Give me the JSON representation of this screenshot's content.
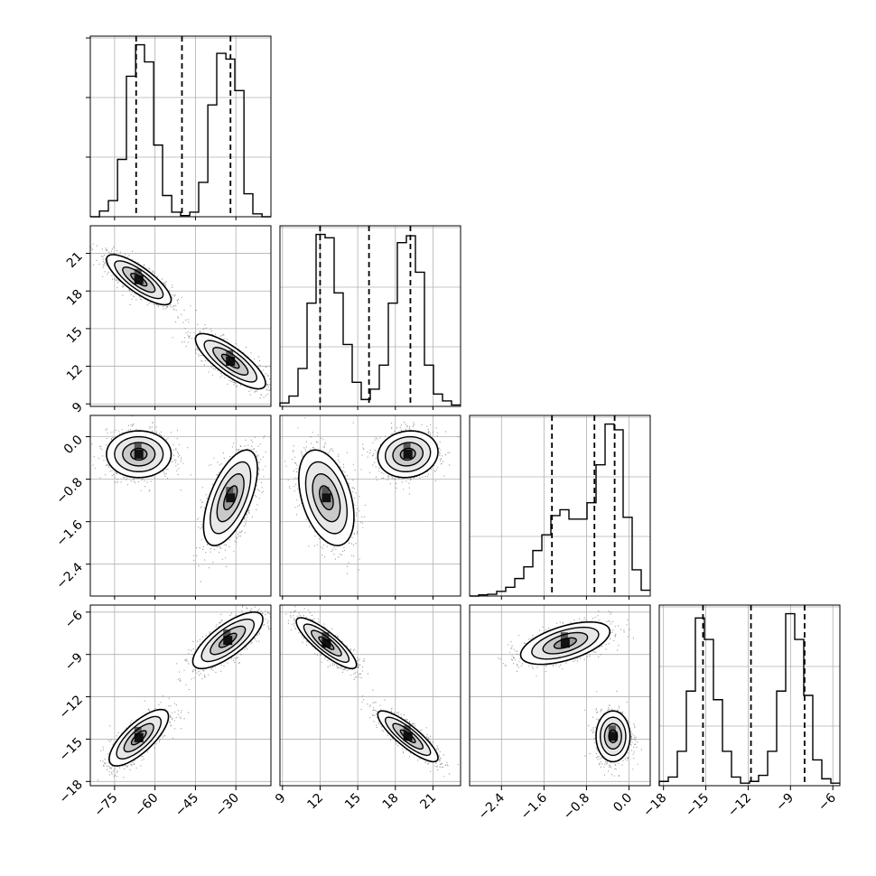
{
  "chart_data": {
    "type": "corner",
    "parameters": [
      {
        "name": "",
        "range": [
          -84,
          -17
        ],
        "ticks": [
          -75,
          -60,
          -45,
          -30
        ]
      },
      {
        "name": "",
        "range": [
          8.8,
          23.2
        ],
        "ticks": [
          9,
          12,
          15,
          18,
          21
        ]
      },
      {
        "name": "",
        "range": [
          -3.0,
          0.4
        ],
        "ticks": [
          -2.4,
          -1.6,
          -0.8,
          0.0
        ]
      },
      {
        "name": "",
        "range": [
          -18.3,
          -5.5
        ],
        "ticks": [
          -18,
          -15,
          -12,
          -9,
          -6
        ]
      }
    ],
    "quantile_lines": [
      [
        -67,
        -50,
        -32
      ],
      [
        12.0,
        15.9,
        19.2
      ],
      [
        -1.45,
        -0.65,
        -0.27
      ],
      [
        -15.2,
        -11.8,
        -8.0
      ]
    ],
    "histograms": [
      {
        "bins": [
          -84,
          -80.6,
          -77.3,
          -73.9,
          -70.6,
          -67.2,
          -63.9,
          -60.5,
          -57.2,
          -53.8,
          -50.5,
          -47.1,
          -43.8,
          -40.4,
          -37.1,
          -33.7,
          -30.4,
          -27,
          -23.7,
          -20.3,
          -17
        ],
        "counts": [
          0,
          10,
          28,
          100,
          245,
          300,
          270,
          125,
          37,
          8,
          2,
          8,
          60,
          195,
          285,
          275,
          220,
          40,
          5,
          0
        ]
      },
      {
        "bins": [
          8.8,
          9.52,
          10.24,
          10.96,
          11.68,
          12.4,
          13.12,
          13.84,
          14.56,
          15.28,
          16.0,
          16.72,
          17.44,
          18.16,
          18.88,
          19.6,
          20.32,
          21.04,
          21.76,
          22.48,
          23.2
        ],
        "counts": [
          5,
          15,
          55,
          150,
          250,
          245,
          165,
          90,
          35,
          10,
          25,
          60,
          150,
          238,
          248,
          195,
          60,
          18,
          8,
          2
        ]
      },
      {
        "bins": [
          -3.0,
          -2.83,
          -2.66,
          -2.49,
          -2.32,
          -2.15,
          -1.98,
          -1.81,
          -1.64,
          -1.47,
          -1.3,
          -1.13,
          -0.96,
          -0.79,
          -0.62,
          -0.45,
          -0.28,
          -0.11,
          0.06,
          0.23,
          0.4
        ],
        "counts": [
          0,
          2,
          3,
          8,
          15,
          30,
          50,
          78,
          105,
          138,
          148,
          132,
          132,
          160,
          225,
          295,
          285,
          135,
          45,
          10
        ]
      },
      {
        "bins": [
          -18.3,
          -17.66,
          -17.02,
          -16.38,
          -15.74,
          -15.1,
          -14.46,
          -13.82,
          -13.18,
          -12.54,
          -11.9,
          -11.26,
          -10.62,
          -9.98,
          -9.34,
          -8.7,
          -8.06,
          -7.42,
          -6.78,
          -6.14,
          -5.5
        ],
        "counts": [
          5,
          10,
          40,
          110,
          195,
          170,
          100,
          40,
          10,
          3,
          5,
          12,
          40,
          110,
          200,
          170,
          105,
          30,
          8,
          3
        ]
      }
    ],
    "ellipses_2d": [
      {
        "x": 0,
        "y": 1,
        "blobs": [
          {
            "cx": -66,
            "cy": 18.9,
            "sx": 6.0,
            "sy": 1.0,
            "rho": -0.8
          },
          {
            "cx": -32,
            "cy": 12.4,
            "sx": 6.5,
            "sy": 1.1,
            "rho": -0.8
          }
        ]
      },
      {
        "x": 0,
        "y": 2,
        "blobs": [
          {
            "cx": -66,
            "cy": -0.33,
            "sx": 6.0,
            "sy": 0.22,
            "rho": 0.0
          },
          {
            "cx": -32,
            "cy": -1.15,
            "sx": 5.0,
            "sy": 0.45,
            "rho": 0.6
          }
        ]
      },
      {
        "x": 1,
        "y": 2,
        "blobs": [
          {
            "cx": 19.0,
            "cy": -0.33,
            "sx": 1.2,
            "sy": 0.22,
            "rho": 0.1
          },
          {
            "cx": 12.5,
            "cy": -1.15,
            "sx": 1.1,
            "sy": 0.45,
            "rho": -0.4
          }
        ]
      },
      {
        "x": 0,
        "y": 3,
        "blobs": [
          {
            "cx": -66,
            "cy": -14.9,
            "sx": 5.5,
            "sy": 1.0,
            "rho": 0.75
          },
          {
            "cx": -33,
            "cy": -8.0,
            "sx": 6.5,
            "sy": 1.0,
            "rho": 0.75
          }
        ]
      },
      {
        "x": 1,
        "y": 3,
        "blobs": [
          {
            "cx": 12.5,
            "cy": -8.2,
            "sx": 1.2,
            "sy": 0.9,
            "rho": -0.85
          },
          {
            "cx": 19.0,
            "cy": -14.8,
            "sx": 1.2,
            "sy": 0.9,
            "rho": -0.85
          }
        ]
      },
      {
        "x": 2,
        "y": 3,
        "blobs": [
          {
            "cx": -1.2,
            "cy": -8.2,
            "sx": 0.42,
            "sy": 0.75,
            "rho": 0.55
          },
          {
            "cx": -0.3,
            "cy": -14.8,
            "sx": 0.16,
            "sy": 0.9,
            "rho": 0.0
          }
        ]
      }
    ],
    "contour_levels_sigma": [
      0.5,
      1.0,
      1.5,
      2.0
    ],
    "grid": true,
    "colors": {
      "line": "#000000",
      "grid": "#b0b0b0",
      "density": "#000000",
      "background": "#ffffff"
    }
  }
}
